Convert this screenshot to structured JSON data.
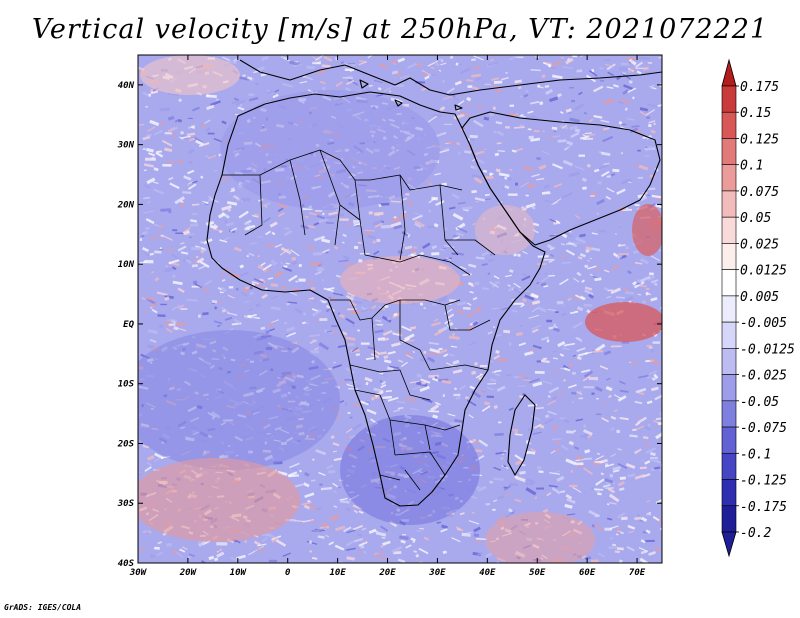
{
  "title": "Vertical velocity [m/s] at 250hPa, VT: 2021072221",
  "credit": "GrADS: IGES/COLA",
  "map": {
    "lon_range": [
      -30,
      75
    ],
    "lat_range": [
      -40,
      45
    ],
    "lon_ticks": [
      {
        "value": -30,
        "label": "30W"
      },
      {
        "value": -20,
        "label": "20W"
      },
      {
        "value": -10,
        "label": "10W"
      },
      {
        "value": 0,
        "label": "0"
      },
      {
        "value": 10,
        "label": "10E"
      },
      {
        "value": 20,
        "label": "20E"
      },
      {
        "value": 30,
        "label": "30E"
      },
      {
        "value": 40,
        "label": "40E"
      },
      {
        "value": 50,
        "label": "50E"
      },
      {
        "value": 60,
        "label": "60E"
      },
      {
        "value": 70,
        "label": "70E"
      }
    ],
    "lat_ticks": [
      {
        "value": 40,
        "label": "40N"
      },
      {
        "value": 30,
        "label": "30N"
      },
      {
        "value": 20,
        "label": "20N"
      },
      {
        "value": 10,
        "label": "10N"
      },
      {
        "value": 0,
        "label": "EQ"
      },
      {
        "value": -10,
        "label": "10S"
      },
      {
        "value": -20,
        "label": "20S"
      },
      {
        "value": -30,
        "label": "30S"
      },
      {
        "value": -40,
        "label": "40S"
      }
    ]
  },
  "colorbar": {
    "orientation": "vertical",
    "levels": [
      {
        "label": "0.175",
        "color": "#b51c1c"
      },
      {
        "label": "0.15",
        "color": "#c93a3a"
      },
      {
        "label": "0.125",
        "color": "#d85858"
      },
      {
        "label": "0.1",
        "color": "#e27a7a"
      },
      {
        "label": "0.075",
        "color": "#ec9b9b"
      },
      {
        "label": "0.05",
        "color": "#f3bcbc"
      },
      {
        "label": "0.025",
        "color": "#f9dada"
      },
      {
        "label": "0.0125",
        "color": "#fdeeee"
      },
      {
        "label": "0.005",
        "color": "#ffffff"
      },
      {
        "label": "-0.005",
        "color": "#ececfc"
      },
      {
        "label": "-0.0125",
        "color": "#d6d6f8"
      },
      {
        "label": "-0.025",
        "color": "#bcbcf2"
      },
      {
        "label": "-0.05",
        "color": "#9d9dea"
      },
      {
        "label": "-0.075",
        "color": "#7f7fe0"
      },
      {
        "label": "-0.1",
        "color": "#6262d4"
      },
      {
        "label": "-0.125",
        "color": "#4646c4"
      },
      {
        "label": "-0.175",
        "color": "#2e2eb0"
      },
      {
        "label": "-0.2",
        "color": "#1e1e98"
      }
    ],
    "top_cap_color": "#b51c1c",
    "bottom_cap_color": "#1e1e98"
  }
}
